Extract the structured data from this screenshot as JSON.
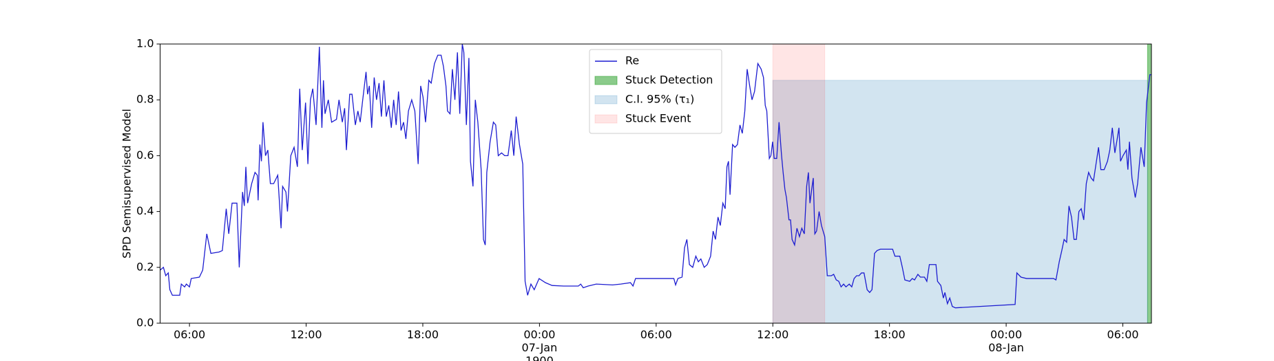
{
  "chart_data": {
    "type": "line",
    "ylabel": "SPD Semisupervised Model",
    "x": [
      4.49,
      4.66,
      4.78,
      4.91,
      4.99,
      5.12,
      5.5,
      5.58,
      5.75,
      5.84,
      6.0,
      6.09,
      6.51,
      6.68,
      6.89,
      7.1,
      7.52,
      7.69,
      7.89,
      8.02,
      8.19,
      8.44,
      8.56,
      8.73,
      8.82,
      8.9,
      8.99,
      9.2,
      9.37,
      9.49,
      9.53,
      9.62,
      9.7,
      9.78,
      9.91,
      10.03,
      10.16,
      10.33,
      10.54,
      10.71,
      10.79,
      10.96,
      11.04,
      11.21,
      11.38,
      11.55,
      11.67,
      11.8,
      11.97,
      12.09,
      12.22,
      12.34,
      12.51,
      12.68,
      12.81,
      12.89,
      12.97,
      13.14,
      13.31,
      13.56,
      13.69,
      13.86,
      13.98,
      14.07,
      14.24,
      14.36,
      14.53,
      14.66,
      14.78,
      14.91,
      15.08,
      15.16,
      15.25,
      15.37,
      15.5,
      15.62,
      15.75,
      15.87,
      16.0,
      16.12,
      16.25,
      16.38,
      16.5,
      16.63,
      16.75,
      16.88,
      17.01,
      17.13,
      17.26,
      17.43,
      17.59,
      17.76,
      17.89,
      18.01,
      18.14,
      18.31,
      18.43,
      18.6,
      18.77,
      18.94,
      19.06,
      19.19,
      19.27,
      19.4,
      19.52,
      19.65,
      19.78,
      19.9,
      20.03,
      20.11,
      20.24,
      20.37,
      20.45,
      20.58,
      20.7,
      20.83,
      21.0,
      21.12,
      21.21,
      21.29,
      21.46,
      21.63,
      21.75,
      21.88,
      22.05,
      22.21,
      22.38,
      22.55,
      22.68,
      22.8,
      22.97,
      23.14,
      23.26,
      23.39,
      23.56,
      23.73,
      23.98,
      24.31,
      24.65,
      25.24,
      26.0,
      26.12,
      26.25,
      26.5,
      26.92,
      27.76,
      28.18,
      28.68,
      28.81,
      28.94,
      29.86,
      30.91,
      31.0,
      31.12,
      31.33,
      31.46,
      31.58,
      31.71,
      31.88,
      32.04,
      32.17,
      32.3,
      32.47,
      32.63,
      32.8,
      32.93,
      33.05,
      33.18,
      33.3,
      33.43,
      33.55,
      33.64,
      33.72,
      33.8,
      33.93,
      34.05,
      34.18,
      34.31,
      34.43,
      34.56,
      34.68,
      34.81,
      34.93,
      35.06,
      35.23,
      35.4,
      35.52,
      35.61,
      35.69,
      35.82,
      35.9,
      35.99,
      36.07,
      36.2,
      36.32,
      36.45,
      36.53,
      36.62,
      36.7,
      36.83,
      36.91,
      36.99,
      37.12,
      37.24,
      37.37,
      37.49,
      37.62,
      37.74,
      37.83,
      37.91,
      38.0,
      38.08,
      38.16,
      38.25,
      38.38,
      38.5,
      38.67,
      38.8,
      39.01,
      39.13,
      39.26,
      39.39,
      39.51,
      39.64,
      39.76,
      39.93,
      40.06,
      40.18,
      40.31,
      40.43,
      40.56,
      40.69,
      40.85,
      40.98,
      41.1,
      41.23,
      41.36,
      41.53,
      41.82,
      42.16,
      42.28,
      42.53,
      42.66,
      42.79,
      43.04,
      43.17,
      43.29,
      43.46,
      43.59,
      43.8,
      43.92,
      44.05,
      44.39,
      44.47,
      44.64,
      44.77,
      44.85,
      44.98,
      45.1,
      45.23,
      45.39,
      48.46,
      48.55,
      48.76,
      49.05,
      50.44,
      50.56,
      50.73,
      50.86,
      50.98,
      51.11,
      51.23,
      51.36,
      51.49,
      51.61,
      51.74,
      51.86,
      51.99,
      52.12,
      52.24,
      52.37,
      52.49,
      52.62,
      52.75,
      52.87,
      53.04,
      53.21,
      53.33,
      53.46,
      53.59,
      53.71,
      53.8,
      53.88,
      54.01,
      54.18,
      54.26,
      54.34,
      54.47,
      54.64,
      54.76,
      54.93,
      55.1,
      55.22,
      55.39,
      55.47
    ],
    "series": [
      {
        "name": "Re",
        "color": "#1c1cd0",
        "values": [
          0.19,
          0.2,
          0.17,
          0.18,
          0.12,
          0.1,
          0.1,
          0.14,
          0.13,
          0.14,
          0.13,
          0.16,
          0.165,
          0.19,
          0.32,
          0.25,
          0.255,
          0.26,
          0.41,
          0.32,
          0.43,
          0.43,
          0.2,
          0.47,
          0.42,
          0.56,
          0.43,
          0.5,
          0.54,
          0.53,
          0.44,
          0.64,
          0.58,
          0.72,
          0.6,
          0.62,
          0.5,
          0.5,
          0.53,
          0.34,
          0.49,
          0.47,
          0.4,
          0.6,
          0.63,
          0.56,
          0.84,
          0.62,
          0.79,
          0.57,
          0.8,
          0.84,
          0.71,
          0.99,
          0.7,
          0.87,
          0.75,
          0.8,
          0.72,
          0.73,
          0.8,
          0.72,
          0.77,
          0.62,
          0.82,
          0.82,
          0.71,
          0.76,
          0.72,
          0.8,
          0.9,
          0.82,
          0.85,
          0.7,
          0.88,
          0.8,
          0.86,
          0.74,
          0.87,
          0.74,
          0.78,
          0.7,
          0.8,
          0.71,
          0.83,
          0.69,
          0.72,
          0.66,
          0.76,
          0.8,
          0.76,
          0.57,
          0.85,
          0.81,
          0.72,
          0.87,
          0.86,
          0.93,
          0.96,
          0.96,
          0.92,
          0.85,
          0.76,
          0.75,
          0.91,
          0.8,
          0.97,
          0.75,
          1.0,
          0.97,
          0.71,
          0.95,
          0.58,
          0.49,
          0.8,
          0.72,
          0.55,
          0.3,
          0.28,
          0.54,
          0.65,
          0.72,
          0.71,
          0.6,
          0.61,
          0.6,
          0.6,
          0.69,
          0.6,
          0.74,
          0.64,
          0.57,
          0.15,
          0.1,
          0.14,
          0.12,
          0.16,
          0.145,
          0.135,
          0.133,
          0.133,
          0.14,
          0.127,
          0.133,
          0.14,
          0.137,
          0.14,
          0.145,
          0.133,
          0.16,
          0.16,
          0.16,
          0.137,
          0.16,
          0.165,
          0.27,
          0.3,
          0.21,
          0.2,
          0.24,
          0.22,
          0.23,
          0.2,
          0.21,
          0.24,
          0.33,
          0.3,
          0.38,
          0.35,
          0.43,
          0.41,
          0.56,
          0.58,
          0.46,
          0.64,
          0.63,
          0.64,
          0.71,
          0.68,
          0.76,
          0.91,
          0.85,
          0.8,
          0.83,
          0.93,
          0.91,
          0.88,
          0.78,
          0.76,
          0.59,
          0.6,
          0.65,
          0.59,
          0.59,
          0.72,
          0.6,
          0.54,
          0.48,
          0.45,
          0.37,
          0.37,
          0.3,
          0.28,
          0.34,
          0.31,
          0.34,
          0.32,
          0.49,
          0.54,
          0.43,
          0.48,
          0.52,
          0.32,
          0.33,
          0.4,
          0.35,
          0.31,
          0.17,
          0.17,
          0.175,
          0.155,
          0.15,
          0.13,
          0.14,
          0.13,
          0.14,
          0.13,
          0.16,
          0.17,
          0.17,
          0.18,
          0.18,
          0.12,
          0.11,
          0.12,
          0.25,
          0.26,
          0.265,
          0.265,
          0.265,
          0.24,
          0.24,
          0.2,
          0.155,
          0.15,
          0.16,
          0.155,
          0.175,
          0.165,
          0.165,
          0.15,
          0.21,
          0.21,
          0.15,
          0.135,
          0.09,
          0.11,
          0.07,
          0.09,
          0.06,
          0.055,
          0.067,
          0.18,
          0.165,
          0.16,
          0.16,
          0.155,
          0.22,
          0.26,
          0.3,
          0.29,
          0.42,
          0.38,
          0.3,
          0.3,
          0.4,
          0.41,
          0.37,
          0.5,
          0.54,
          0.52,
          0.51,
          0.57,
          0.63,
          0.55,
          0.55,
          0.58,
          0.62,
          0.7,
          0.61,
          0.66,
          0.7,
          0.58,
          0.6,
          0.62,
          0.55,
          0.65,
          0.52,
          0.45,
          0.5,
          0.63,
          0.56,
          0.79,
          0.89,
          0.89
        ]
      }
    ],
    "spans": [
      {
        "name": "Stuck Detection",
        "color": "#2ca02c",
        "opacity": 0.55,
        "x": [
          55.27,
          55.47
        ],
        "y": [
          0,
          1
        ]
      },
      {
        "name": "C.I. 95% (τ₁)",
        "color": "#1f77b4",
        "opacity": 0.2,
        "x": [
          36.0,
          55.27
        ],
        "y": [
          0,
          0.87
        ]
      },
      {
        "name": "Stuck Event",
        "color": "#ff0000",
        "opacity": 0.1,
        "x": [
          36.0,
          38.67
        ],
        "y": [
          0,
          1
        ]
      }
    ],
    "xlim": [
      4.49,
      55.47
    ],
    "ylim": [
      0,
      1
    ],
    "xticks": [
      {
        "value": 6,
        "label": "06:00"
      },
      {
        "value": 12,
        "label": "12:00"
      },
      {
        "value": 18,
        "label": "18:00"
      },
      {
        "value": 24,
        "label": "00:00\n07-Jan\n1900"
      },
      {
        "value": 30,
        "label": "06:00"
      },
      {
        "value": 36,
        "label": "12:00"
      },
      {
        "value": 42,
        "label": "18:00"
      },
      {
        "value": 48,
        "label": "00:00\n08-Jan"
      },
      {
        "value": 54,
        "label": "06:00"
      }
    ],
    "yticks": [
      {
        "value": 0,
        "label": "0.0"
      },
      {
        "value": 0.2,
        "label": "0.2"
      },
      {
        "value": 0.4,
        "label": "0.4"
      },
      {
        "value": 0.6,
        "label": "0.6"
      },
      {
        "value": 0.8,
        "label": "0.8"
      },
      {
        "value": 1,
        "label": "1.0"
      }
    ],
    "legend": "upper center"
  }
}
